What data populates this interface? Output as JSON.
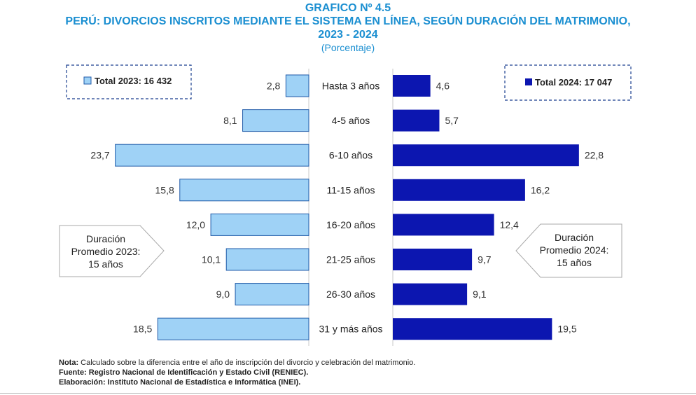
{
  "header": {
    "graph_number": "GRAFICO Nº 4.5",
    "title_line1": "PERÚ: DIVORCIOS INSCRITOS MEDIANTE EL SISTEMA EN LÍNEA, SEGÚN DURACIÓN DEL MATRIMONIO,",
    "title_line2": "2023 - 2024",
    "subtitle": "(Porcentaje)"
  },
  "legend": {
    "left": "Total 2023: 16 432",
    "right": "Total 2024: 17 047"
  },
  "callouts": {
    "left": [
      "Duración",
      "Promedio 2023:",
      "15 años"
    ],
    "right": [
      "Duración",
      "Promedio 2024:",
      "15 años"
    ]
  },
  "notes": {
    "nota_label": "Nota:",
    "nota_text": " Calculado sobre la diferencia entre el año de inscripción del divorcio y celebración del matrimonio.",
    "fuente_label": "Fuente:",
    "fuente_text": " Registro Nacional de Identificación y Estado Civil (RENIEC).",
    "elaboracion_label": "Elaboración:",
    "elaboracion_text": " Instituto Nacional de Estadística e Informática (INEI)."
  },
  "colors": {
    "title": "#1b8fd1",
    "series_2023": "#9fd2f6",
    "series_2023_border": "#1f5aa8",
    "series_2024": "#0c16b0",
    "legend_border": "#1b3f8f",
    "callout_border": "#aaaaaa"
  },
  "chart_data": {
    "type": "bar",
    "orientation": "horizontal-butterfly",
    "categories": [
      "Hasta 3 años",
      "4-5 años",
      "6-10 años",
      "11-15 años",
      "16-20 años",
      "21-25 años",
      "26-30 años",
      "31 y más años"
    ],
    "series": [
      {
        "name": "2023",
        "values": [
          2.8,
          8.1,
          23.7,
          15.8,
          12.0,
          10.1,
          9.0,
          18.5
        ],
        "labels": [
          "2,8",
          "8,1",
          "23,7",
          "15,8",
          "12,0",
          "10,1",
          "9,0",
          "18,5"
        ]
      },
      {
        "name": "2024",
        "values": [
          4.6,
          5.7,
          22.8,
          16.2,
          12.4,
          9.7,
          9.1,
          19.5
        ],
        "labels": [
          "4,6",
          "5,7",
          "22,8",
          "16,2",
          "12,4",
          "9,7",
          "9,1",
          "19,5"
        ]
      }
    ],
    "unit": "Porcentaje"
  }
}
